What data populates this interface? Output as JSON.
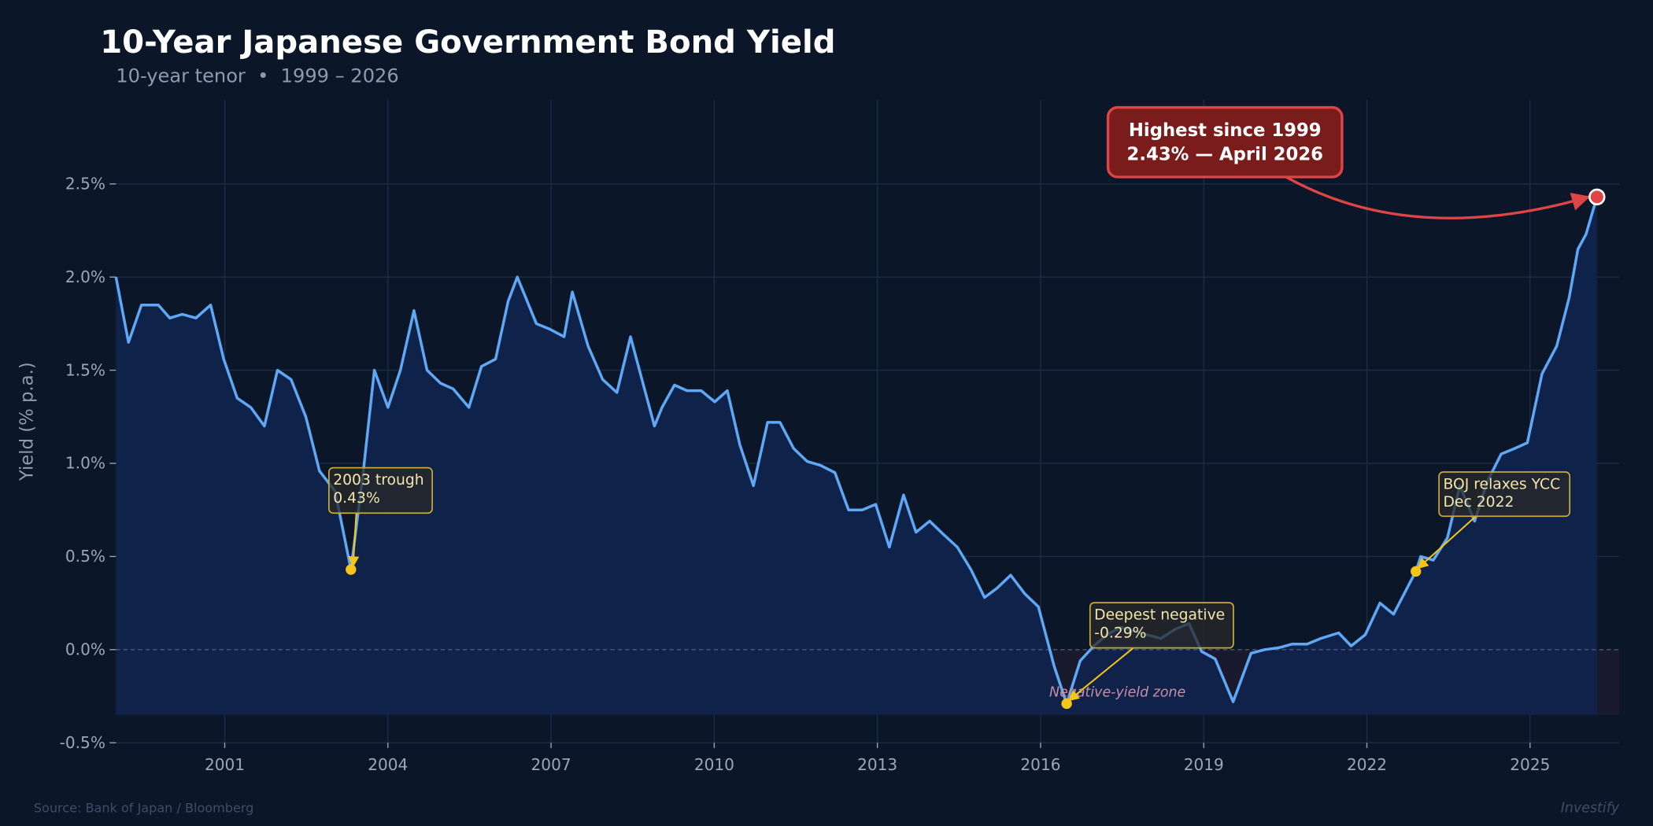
{
  "chart_data": {
    "type": "area",
    "title": "10-Year Japanese Government Bond Yield",
    "subtitle": "10-year tenor  •  1999 – 2026",
    "ylabel": "Yield (% p.a.)",
    "xlabel": "",
    "xlim": [
      1999.0,
      2026.64
    ],
    "ylim": [
      -0.5,
      2.95
    ],
    "grid": true,
    "legend": "none",
    "x_ticks": [
      "2001",
      "2004",
      "2007",
      "2010",
      "2013",
      "2016",
      "2019",
      "2022",
      "2025"
    ],
    "y_ticks": [
      {
        "value": -0.5,
        "label": "-0.5%"
      },
      {
        "value": 0.0,
        "label": "0.0%"
      },
      {
        "value": 0.5,
        "label": "0.5%"
      },
      {
        "value": 1.0,
        "label": "1.0%"
      },
      {
        "value": 1.5,
        "label": "1.5%"
      },
      {
        "value": 2.0,
        "label": "2.0%"
      },
      {
        "value": 2.5,
        "label": "2.5%"
      }
    ],
    "series": [
      {
        "x": [
          1999.0,
          1999.23,
          1999.47,
          1999.78,
          1999.99,
          2000.22,
          2000.47,
          2000.74,
          2000.98,
          2001.23,
          2001.48,
          2001.73,
          2001.97,
          2002.22,
          2002.49,
          2002.74,
          2003.03,
          2003.32,
          2003.55,
          2003.75,
          2004.0,
          2004.23,
          2004.48,
          2004.72,
          2004.97,
          2005.2,
          2005.49,
          2005.72,
          2005.98,
          2006.21,
          2006.38,
          2006.73,
          2006.98,
          2007.24,
          2007.39,
          2007.68,
          2007.95,
          2008.21,
          2008.46,
          2008.69,
          2008.9,
          2009.04,
          2009.27,
          2009.5,
          2009.76,
          2010.01,
          2010.24,
          2010.47,
          2010.72,
          2010.98,
          2011.21,
          2011.46,
          2011.71,
          2011.95,
          2012.22,
          2012.47,
          2012.72,
          2012.97,
          2013.22,
          2013.48,
          2013.71,
          2013.96,
          2014.21,
          2014.47,
          2014.72,
          2014.97,
          2015.2,
          2015.45,
          2015.71,
          2015.96,
          2016.25,
          2016.48,
          2016.73,
          2016.98,
          2017.22,
          2017.47,
          2017.72,
          2017.95,
          2018.21,
          2018.48,
          2018.73,
          2018.96,
          2019.21,
          2019.54,
          2019.87,
          2020.12,
          2020.38,
          2020.63,
          2020.9,
          2021.15,
          2021.48,
          2021.71,
          2021.97,
          2022.24,
          2022.49,
          2022.9,
          2022.99,
          2023.22,
          2023.48,
          2023.71,
          2023.98,
          2024.21,
          2024.47,
          2024.72,
          2024.95,
          2025.22,
          2025.49,
          2025.72,
          2025.88,
          2026.03,
          2026.23
        ],
        "values": [
          2.0,
          1.65,
          1.85,
          1.85,
          1.78,
          1.8,
          1.78,
          1.85,
          1.56,
          1.35,
          1.3,
          1.2,
          1.5,
          1.45,
          1.25,
          0.96,
          0.85,
          0.43,
          0.96,
          1.5,
          1.3,
          1.5,
          1.82,
          1.5,
          1.43,
          1.4,
          1.3,
          1.52,
          1.56,
          1.87,
          2.0,
          1.75,
          1.72,
          1.68,
          1.92,
          1.63,
          1.45,
          1.38,
          1.68,
          1.43,
          1.2,
          1.3,
          1.42,
          1.39,
          1.39,
          1.33,
          1.39,
          1.1,
          0.88,
          1.22,
          1.22,
          1.08,
          1.01,
          0.99,
          0.95,
          0.75,
          0.75,
          0.78,
          0.55,
          0.83,
          0.63,
          0.69,
          0.62,
          0.55,
          0.43,
          0.28,
          0.33,
          0.4,
          0.3,
          0.23,
          -0.09,
          -0.29,
          -0.06,
          0.02,
          0.08,
          0.12,
          0.1,
          0.08,
          0.06,
          0.11,
          0.14,
          -0.01,
          -0.05,
          -0.28,
          -0.02,
          0.0,
          0.01,
          0.03,
          0.03,
          0.06,
          0.09,
          0.02,
          0.08,
          0.25,
          0.19,
          0.42,
          0.5,
          0.48,
          0.6,
          0.88,
          0.69,
          0.9,
          1.05,
          1.08,
          1.11,
          1.48,
          1.63,
          1.89,
          2.15,
          2.23,
          2.43
        ]
      }
    ],
    "zero_band_label": "Negative-yield zone",
    "annotations": [
      {
        "id": "trough-2003",
        "lines": [
          "2003 trough",
          "0.43%"
        ],
        "x": 2003.32,
        "y": 0.43
      },
      {
        "id": "deepest-negative",
        "lines": [
          "Deepest negative",
          "-0.29%"
        ],
        "x": 2016.48,
        "y": -0.29
      },
      {
        "id": "boj-ycc",
        "lines": [
          "BOJ relaxes YCC",
          "Dec 2022"
        ],
        "x": 2022.9,
        "y": 0.42
      },
      {
        "id": "highest",
        "lines": [
          "Highest since 1999",
          "2.43%  —  April 2026"
        ],
        "x": 2026.23,
        "y": 2.43
      }
    ],
    "source": "Source: Bank of Japan / Bloomberg",
    "watermark": "Investify",
    "colors": {
      "background": "#0b1628",
      "line": "#5fa8f5",
      "fill": "#10234b",
      "annotation": "#f5c518",
      "highlight": "#e04545",
      "highlight_box": "#7a1c1c"
    }
  }
}
